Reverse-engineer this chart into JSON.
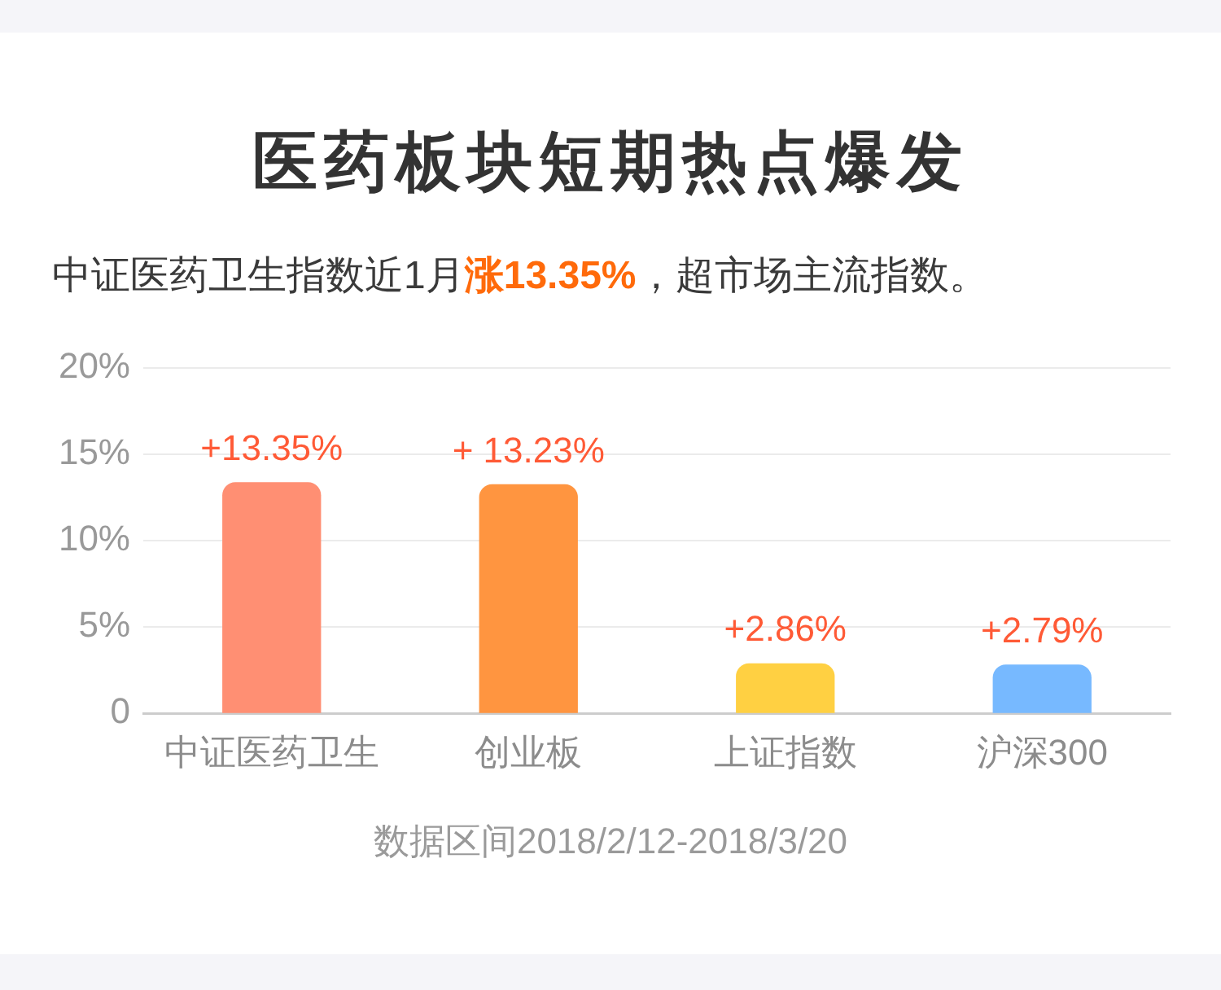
{
  "chart_data": {
    "type": "bar",
    "title": "医药板块短期热点爆发",
    "subtitle": "中证医药卫生指数近1月涨13.35%，超市场主流指数。",
    "categories": [
      "中证医药卫生",
      "创业板",
      "上证指数",
      "沪深300"
    ],
    "values": [
      13.35,
      13.23,
      2.86,
      2.79
    ],
    "colors": [
      "#ff8f73",
      "#ff9540",
      "#ffd042",
      "#77b9ff"
    ],
    "value_labels": [
      "+13.35%",
      "+ 13.23%",
      "+2.86%",
      "+2.79%"
    ],
    "ylim": [
      0,
      20
    ],
    "yticks": [
      0,
      {
        "value": 5,
        "label": "5%"
      },
      {
        "value": 10,
        "label": "10%"
      },
      {
        "value": 15,
        "label": "15%"
      },
      {
        "value": 20,
        "label": "20%"
      }
    ],
    "grid": "y",
    "annotations": [
      "数据区间2018/2/12-2018/3/20"
    ]
  }
}
